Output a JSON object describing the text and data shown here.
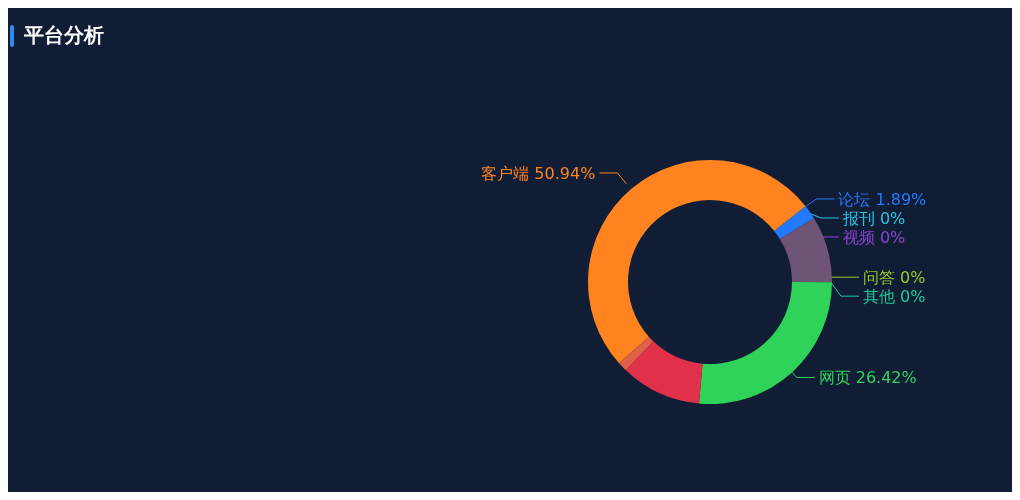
{
  "chart_data": {
    "type": "donut",
    "title": "平台分析",
    "categories": [
      "客户端",
      "论坛",
      "报刊",
      "视频",
      null,
      null,
      "问答",
      "其他",
      "网页",
      null,
      null
    ],
    "values": [
      50.94,
      1.89,
      0,
      0,
      8.8,
      0,
      0,
      0,
      26.42,
      10.69,
      1.26
    ],
    "value_labels": [
      "50.94%",
      "1.89%",
      "0%",
      "0%",
      null,
      null,
      "0%",
      "0%",
      "26.42%",
      null,
      null
    ],
    "colors": [
      "#ff8420",
      "#2379ff",
      "#1ec8e6",
      "#8a44d6",
      "#6e5477",
      "#c8941a",
      "#9cc828",
      "#1fc99a",
      "#2fd35a",
      "#e0304a",
      "#e0604a"
    ]
  }
}
